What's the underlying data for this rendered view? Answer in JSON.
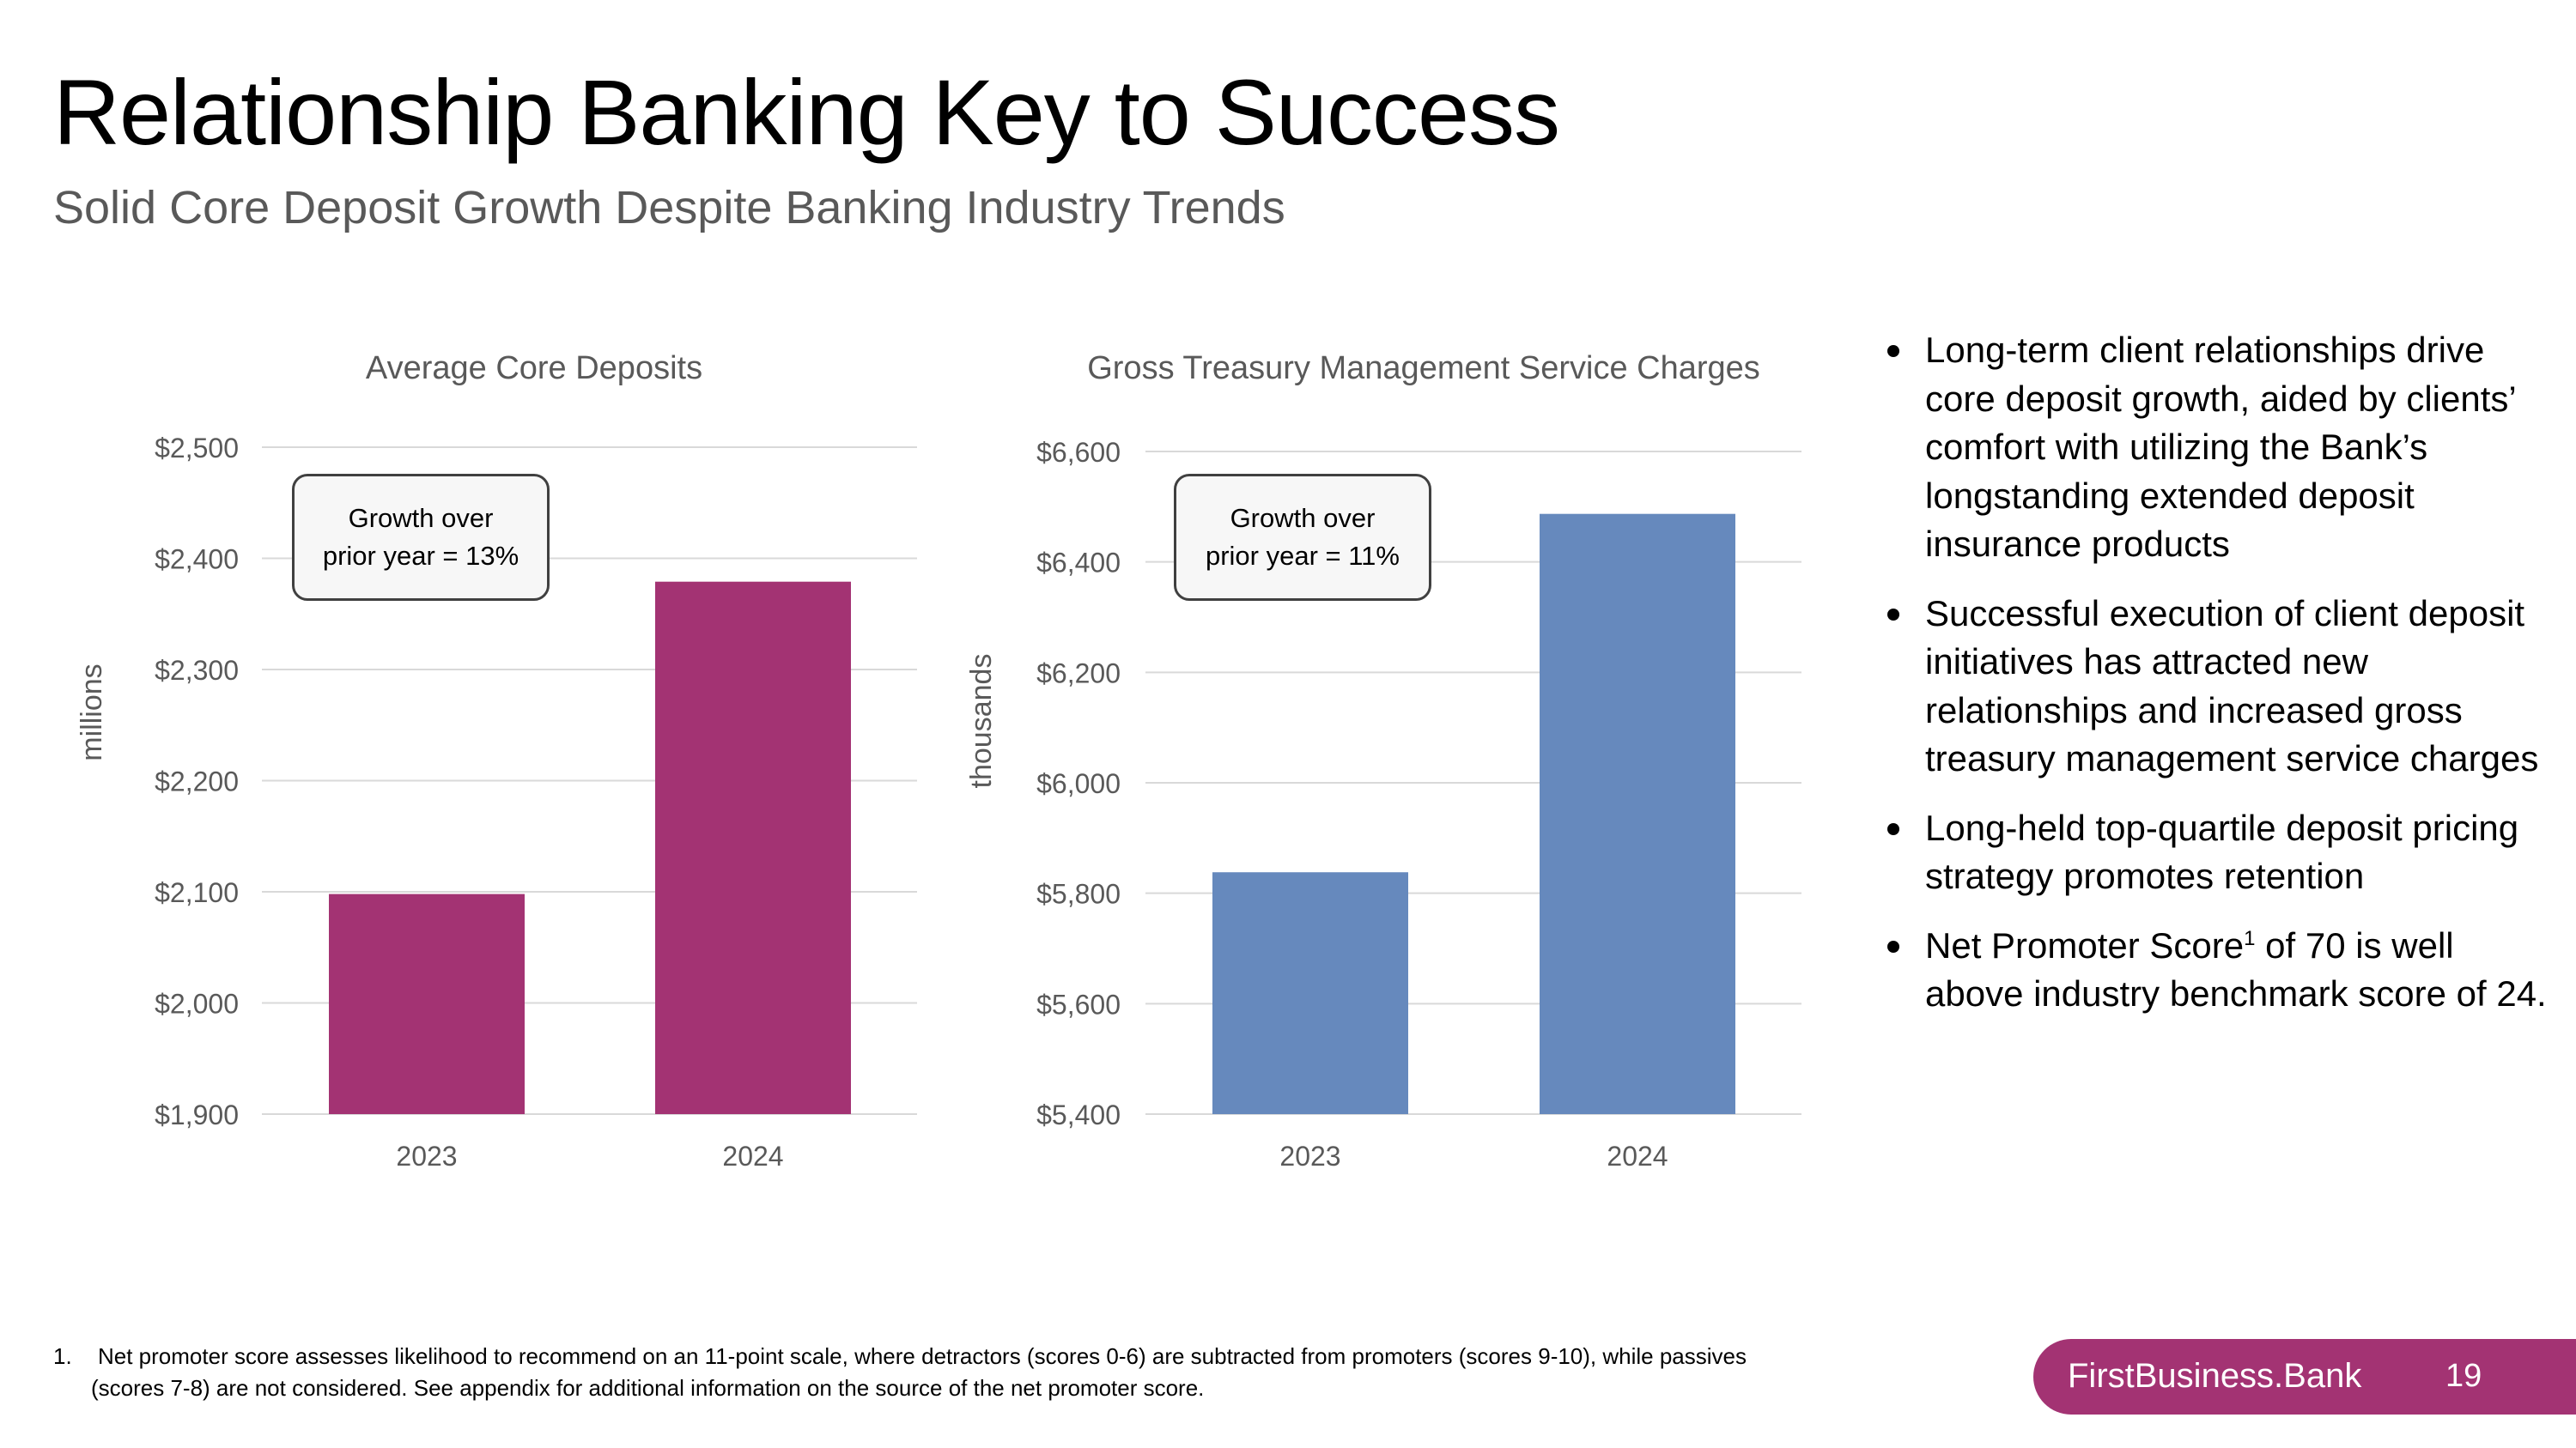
{
  "slide": {
    "title": "Relationship Banking Key to Success",
    "subtitle": "Solid Core Deposit Growth Despite Banking Industry Trends",
    "brand": "FirstBusiness.Bank",
    "page_number": "19"
  },
  "chart_data": [
    {
      "type": "bar",
      "title": "Average Core Deposits",
      "ylabel": "millions",
      "categories": [
        "2023",
        "2024"
      ],
      "values": [
        2098,
        2379
      ],
      "ylim": [
        1900,
        2500
      ],
      "yticks": [
        1900,
        2000,
        2100,
        2200,
        2300,
        2400,
        2500
      ],
      "ytick_labels": [
        "$1,900",
        "$2,000",
        "$2,100",
        "$2,200",
        "$2,300",
        "$2,400",
        "$2,500"
      ],
      "color": "#a33373",
      "grid": true,
      "callout": [
        "Growth over",
        "prior year = 13%"
      ]
    },
    {
      "type": "bar",
      "title": "Gross Treasury Management Service Charges",
      "ylabel": "thousands",
      "categories": [
        "2023",
        "2024"
      ],
      "values": [
        5838,
        6487
      ],
      "ylim": [
        5400,
        6600
      ],
      "yticks": [
        5400,
        5600,
        5800,
        6000,
        6200,
        6400,
        6600
      ],
      "ytick_labels": [
        "$5,400",
        "$5,600",
        "$5,800",
        "$6,000",
        "$6,200",
        "$6,400",
        "$6,600"
      ],
      "color": "#6689bd",
      "grid": true,
      "callout": [
        "Growth over",
        "prior year = 11%"
      ]
    }
  ],
  "bullets": [
    {
      "text": "Long-term client relationships drive core deposit growth, aided by clients’ comfort with utilizing the Bank’s longstanding extended deposit insurance products"
    },
    {
      "text": "Successful execution of client deposit initiatives has attracted new relationships and increased gross treasury management service charges"
    },
    {
      "text": "Long-held top-quartile deposit pricing strategy promotes retention"
    },
    {
      "pre": "Net Promoter Score",
      "sup": "1",
      "post": " of 70 is well above industry benchmark score of 24."
    }
  ],
  "footnote": {
    "number": "1.",
    "line1": "Net promoter score assesses likelihood to recommend on an 11-point scale, where detractors (scores 0-6) are subtracted from promoters (scores 9-10), while passives",
    "line2": "(scores 7-8) are not considered. See appendix for additional information on the source of the net promoter score."
  }
}
